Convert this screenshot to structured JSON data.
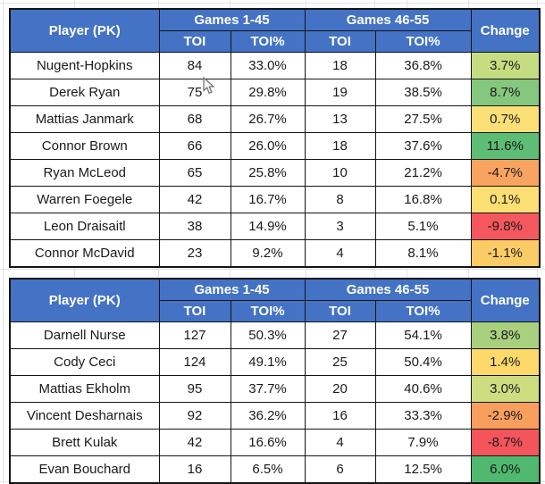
{
  "colors": {
    "header_bg": "#4472c4",
    "header_text": "#ffffff",
    "border": "#141414",
    "gridline": "#e3e3e3"
  },
  "row_fields": [
    "player",
    "toi1",
    "toi1_pct",
    "toi2",
    "toi2_pct",
    "change"
  ],
  "tables": [
    {
      "header": {
        "player": "Player (PK)",
        "group1": "Games 1-45",
        "group2": "Games 46-55",
        "toi_a": "TOI",
        "toi_pct_a": "TOI%",
        "toi_b": "TOI",
        "toi_pct_b": "TOI%",
        "change": "Change"
      },
      "rows": [
        {
          "player": "Nugent-Hopkins",
          "toi1": "84",
          "toi1_pct": "33.0%",
          "toi2": "18",
          "toi2_pct": "36.8%",
          "change": "3.7%",
          "change_color": "#c6dc81"
        },
        {
          "player": "Derek Ryan",
          "toi1": "75",
          "toi1_pct": "29.8%",
          "toi2": "19",
          "toi2_pct": "38.5%",
          "change": "8.7%",
          "change_color": "#85c77e"
        },
        {
          "player": "Mattias Janmark",
          "toi1": "68",
          "toi1_pct": "26.7%",
          "toi2": "13",
          "toi2_pct": "27.5%",
          "change": "0.7%",
          "change_color": "#fbe077"
        },
        {
          "player": "Connor Brown",
          "toi1": "66",
          "toi1_pct": "26.0%",
          "toi2": "18",
          "toi2_pct": "37.6%",
          "change": "11.6%",
          "change_color": "#5dbd74"
        },
        {
          "player": "Ryan McLeod",
          "toi1": "65",
          "toi1_pct": "25.8%",
          "toi2": "10",
          "toi2_pct": "21.2%",
          "change": "-4.7%",
          "change_color": "#f9a360"
        },
        {
          "player": "Warren Foegele",
          "toi1": "42",
          "toi1_pct": "16.7%",
          "toi2": "8",
          "toi2_pct": "16.8%",
          "change": "0.1%",
          "change_color": "#fbdf73"
        },
        {
          "player": "Leon Draisaitl",
          "toi1": "38",
          "toi1_pct": "14.9%",
          "toi2": "3",
          "toi2_pct": "5.1%",
          "change": "-9.8%",
          "change_color": "#f4585e"
        },
        {
          "player": "Connor McDavid",
          "toi1": "23",
          "toi1_pct": "9.2%",
          "toi2": "4",
          "toi2_pct": "8.1%",
          "change": "-1.1%",
          "change_color": "#fbcc66"
        }
      ]
    },
    {
      "header": {
        "player": "Player (PK)",
        "group1": "Games 1-45",
        "group2": "Games 46-55",
        "toi_a": "TOI",
        "toi_pct_a": "TOI%",
        "toi_b": "TOI",
        "toi_pct_b": "TOI%",
        "change": "Change"
      },
      "rows": [
        {
          "player": "Darnell Nurse",
          "toi1": "127",
          "toi1_pct": "50.3%",
          "toi2": "27",
          "toi2_pct": "54.1%",
          "change": "3.8%",
          "change_color": "#a9d07f"
        },
        {
          "player": "Cody Ceci",
          "toi1": "124",
          "toi1_pct": "49.1%",
          "toi2": "25",
          "toi2_pct": "50.4%",
          "change": "1.4%",
          "change_color": "#fcd96a"
        },
        {
          "player": "Mattias Ekholm",
          "toi1": "95",
          "toi1_pct": "37.7%",
          "toi2": "20",
          "toi2_pct": "40.6%",
          "change": "3.0%",
          "change_color": "#cedd80"
        },
        {
          "player": "Vincent Desharnais",
          "toi1": "92",
          "toi1_pct": "36.2%",
          "toi2": "16",
          "toi2_pct": "33.3%",
          "change": "-2.9%",
          "change_color": "#f89f5e"
        },
        {
          "player": "Brett Kulak",
          "toi1": "42",
          "toi1_pct": "16.6%",
          "toi2": "4",
          "toi2_pct": "7.9%",
          "change": "-8.7%",
          "change_color": "#f4555c"
        },
        {
          "player": "Evan Bouchard",
          "toi1": "16",
          "toi1_pct": "6.5%",
          "toi2": "6",
          "toi2_pct": "12.5%",
          "change": "6.0%",
          "change_color": "#50b96f"
        }
      ]
    }
  ],
  "gridline_layout": {
    "vlines_x": [
      3,
      83,
      177,
      257,
      342,
      419,
      455,
      524,
      601
    ],
    "hlines_y": [
      3,
      301,
      539
    ]
  }
}
